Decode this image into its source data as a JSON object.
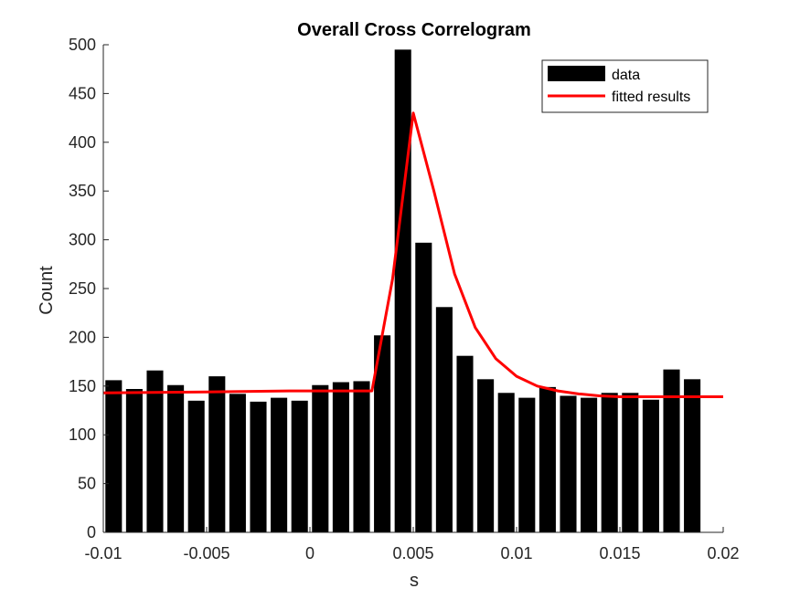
{
  "chart_data": {
    "type": "bar",
    "title": "Overall Cross Correlogram",
    "xlabel": "s",
    "ylabel": "Count",
    "xlim": [
      -0.01,
      0.02
    ],
    "ylim": [
      0,
      500
    ],
    "xticks": [
      "-0.01",
      "-0.005",
      "0",
      "0.005",
      "0.01",
      "0.015",
      "0.02"
    ],
    "xtick_values": [
      -0.01,
      -0.005,
      0,
      0.005,
      0.01,
      0.015,
      0.02
    ],
    "yticks": [
      "0",
      "50",
      "100",
      "150",
      "200",
      "250",
      "300",
      "350",
      "400",
      "450",
      "500"
    ],
    "ytick_values": [
      0,
      50,
      100,
      150,
      200,
      250,
      300,
      350,
      400,
      450,
      500
    ],
    "grid": false,
    "legend_position": "top-right",
    "bar_width": 0.001,
    "bar_color": "#000000",
    "line_color": "#ff0000",
    "series": [
      {
        "name": "data",
        "type": "bar",
        "x": [
          -0.0095,
          -0.0085,
          -0.0075,
          -0.0065,
          -0.0055,
          -0.0045,
          -0.0035,
          -0.0025,
          -0.0015,
          -0.0005,
          0.0005,
          0.0015,
          0.0025,
          0.0035,
          0.0045,
          0.0055,
          0.0065,
          0.0075,
          0.0085,
          0.0095,
          0.0105,
          0.0115,
          0.0125,
          0.0135,
          0.0145,
          0.0155,
          0.0165,
          0.0175,
          0.0185,
          0.0195
        ],
        "values": [
          156,
          147,
          166,
          151,
          135,
          160,
          142,
          134,
          138,
          135,
          151,
          154,
          155,
          202,
          495,
          297,
          231,
          181,
          157,
          143,
          138,
          149,
          140,
          138,
          143,
          143,
          136,
          167,
          157,
          0
        ]
      },
      {
        "name": "fitted results",
        "type": "line",
        "x": [
          -0.01,
          -0.005,
          -0.001,
          0.003,
          0.004,
          0.005,
          0.006,
          0.007,
          0.008,
          0.009,
          0.01,
          0.011,
          0.012,
          0.013,
          0.014,
          0.015,
          0.016,
          0.018,
          0.02
        ],
        "values": [
          143,
          144,
          145,
          145,
          260,
          430,
          350,
          265,
          210,
          178,
          160,
          150,
          145,
          142,
          140,
          139,
          139,
          139,
          139
        ]
      }
    ]
  }
}
